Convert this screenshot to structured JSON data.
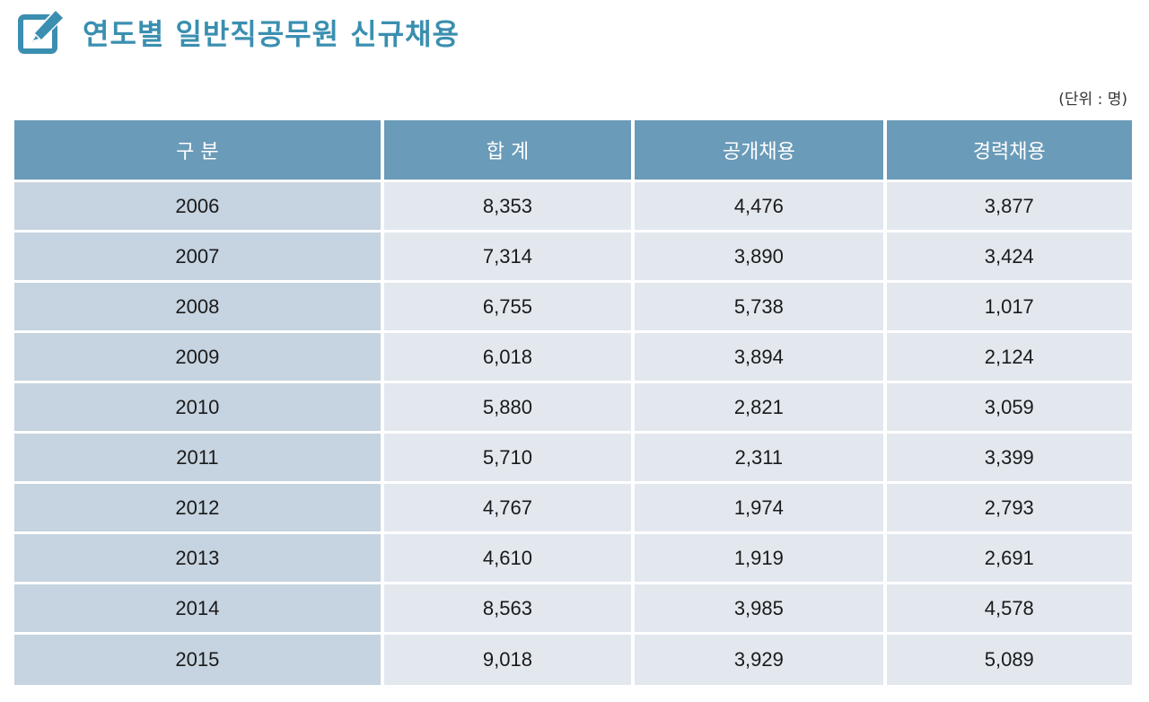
{
  "header": {
    "title": "연도별 일반직공무원 신규채용",
    "icon": "edit-icon",
    "accent_color": "#3a8fb0"
  },
  "unit_note": "(단위 : 명)",
  "table": {
    "header_color": "#6a9bb8",
    "columns": [
      "구 분",
      "합 계",
      "공개채용",
      "경력채용"
    ],
    "rows": [
      {
        "year": "2006",
        "total": "8,353",
        "open": "4,476",
        "career": "3,877"
      },
      {
        "year": "2007",
        "total": "7,314",
        "open": "3,890",
        "career": "3,424"
      },
      {
        "year": "2008",
        "total": "6,755",
        "open": "5,738",
        "career": "1,017"
      },
      {
        "year": "2009",
        "total": "6,018",
        "open": "3,894",
        "career": "2,124"
      },
      {
        "year": "2010",
        "total": "5,880",
        "open": "2,821",
        "career": "3,059"
      },
      {
        "year": "2011",
        "total": "5,710",
        "open": "2,311",
        "career": "3,399"
      },
      {
        "year": "2012",
        "total": "4,767",
        "open": "1,974",
        "career": "2,793"
      },
      {
        "year": "2013",
        "total": "4,610",
        "open": "1,919",
        "career": "2,691"
      },
      {
        "year": "2014",
        "total": "8,563",
        "open": "3,985",
        "career": "4,578"
      },
      {
        "year": "2015",
        "total": "9,018",
        "open": "3,929",
        "career": "5,089"
      }
    ]
  }
}
